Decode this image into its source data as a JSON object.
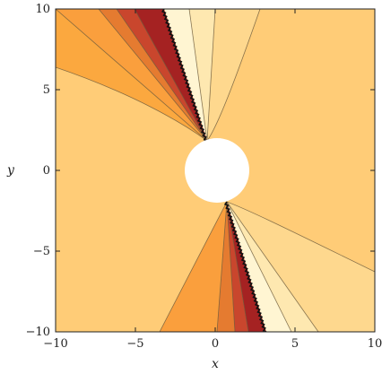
{
  "chart_data": {
    "type": "contour",
    "xlabel": "x",
    "ylabel": "y",
    "xlim": [
      -10,
      10
    ],
    "ylim": [
      -10,
      10
    ],
    "x_ticks": [
      -10,
      -5,
      0,
      5,
      10
    ],
    "y_ticks": [
      -10,
      -5,
      0,
      5,
      10
    ],
    "x_tick_labels": [
      "−10",
      "−5",
      "0",
      "5",
      "10"
    ],
    "y_tick_labels": [
      "−10",
      "−5",
      "0",
      "5",
      "10"
    ],
    "grid": false,
    "legend": "none",
    "excluded_disk": {
      "center": [
        0,
        0
      ],
      "radius": 2
    },
    "palette": [
      "#ffcc77",
      "#fed88e",
      "#fee8b0",
      "#fff5d2",
      "#a52222",
      "#c9462d",
      "#e57b30",
      "#fa9f3d",
      "#ffb24f"
    ],
    "contour_line_color": "#6b5a3c"
  }
}
